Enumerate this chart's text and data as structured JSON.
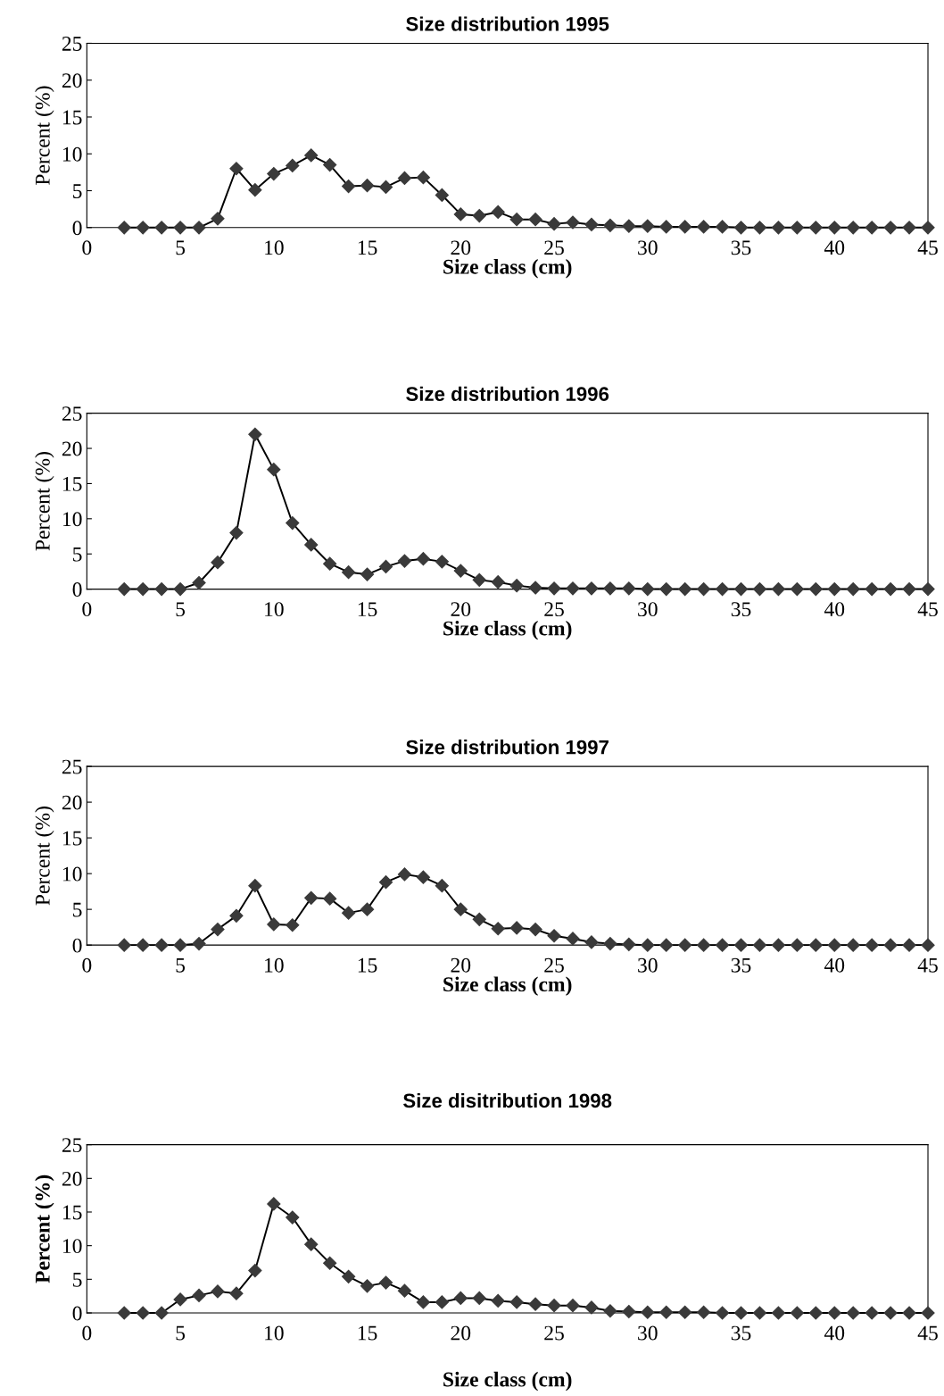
{
  "chart_data": [
    {
      "type": "line",
      "title": "Size distribution 1995",
      "xlabel": "Size class (cm)",
      "ylabel": "Percent (%)",
      "xlim": [
        0,
        45
      ],
      "xticks": [
        0,
        5,
        10,
        15,
        20,
        25,
        30,
        35,
        40,
        45
      ],
      "ylim": [
        0,
        25
      ],
      "yticks": [
        0,
        5,
        10,
        15,
        20,
        25
      ],
      "grid": false,
      "marker": "diamond",
      "line_style": "solid",
      "x": [
        2,
        3,
        4,
        5,
        6,
        7,
        8,
        9,
        10,
        11,
        12,
        13,
        14,
        15,
        16,
        17,
        18,
        19,
        20,
        21,
        22,
        23,
        24,
        25,
        26,
        27,
        28,
        29,
        30,
        31,
        32,
        33,
        34,
        35,
        36,
        37,
        38,
        39,
        40,
        41,
        42,
        43,
        44,
        45
      ],
      "series": [
        {
          "color": "#3a3a3a",
          "values": [
            0,
            0,
            0,
            0,
            0,
            1.2,
            8,
            5.1,
            7.3,
            8.4,
            9.8,
            8.5,
            5.6,
            5.7,
            5.5,
            6.7,
            6.8,
            4.4,
            1.8,
            1.6,
            2.1,
            1.1,
            1.1,
            0.5,
            0.7,
            0.4,
            0.3,
            0.2,
            0.2,
            0.1,
            0.1,
            0.1,
            0.1,
            0,
            0,
            0,
            0,
            0,
            0,
            0,
            0,
            0,
            0,
            0
          ]
        }
      ]
    },
    {
      "type": "line",
      "title": "Size distribution 1996",
      "xlabel": "Size class (cm)",
      "ylabel": "Percent (%)",
      "xlim": [
        0,
        45
      ],
      "xticks": [
        0,
        5,
        10,
        15,
        20,
        25,
        30,
        35,
        40,
        45
      ],
      "ylim": [
        0,
        25
      ],
      "yticks": [
        0,
        5,
        10,
        15,
        20,
        25
      ],
      "grid": false,
      "marker": "diamond",
      "line_style": "solid",
      "x": [
        2,
        3,
        4,
        5,
        6,
        7,
        8,
        9,
        10,
        11,
        12,
        13,
        14,
        15,
        16,
        17,
        18,
        19,
        20,
        21,
        22,
        23,
        24,
        25,
        26,
        27,
        28,
        29,
        30,
        31,
        32,
        33,
        34,
        35,
        36,
        37,
        38,
        39,
        40,
        41,
        42,
        43,
        44,
        45
      ],
      "series": [
        {
          "color": "#3a3a3a",
          "values": [
            0,
            0,
            0,
            0,
            0.9,
            3.8,
            8,
            22,
            17,
            9.4,
            6.3,
            3.6,
            2.4,
            2.1,
            3.2,
            4,
            4.3,
            3.9,
            2.6,
            1.3,
            1,
            0.5,
            0.2,
            0.1,
            0.1,
            0.1,
            0.1,
            0.1,
            0,
            0,
            0,
            0,
            0,
            0,
            0,
            0,
            0,
            0,
            0,
            0,
            0,
            0,
            0,
            0
          ]
        }
      ]
    },
    {
      "type": "line",
      "title": "Size distribution 1997",
      "xlabel": "Size class (cm)",
      "ylabel": "Percent (%)",
      "xlim": [
        0,
        45
      ],
      "xticks": [
        0,
        5,
        10,
        15,
        20,
        25,
        30,
        35,
        40,
        45
      ],
      "ylim": [
        0,
        25
      ],
      "yticks": [
        0,
        5,
        10,
        15,
        20,
        25
      ],
      "grid": false,
      "marker": "diamond",
      "line_style": "solid",
      "x": [
        2,
        3,
        4,
        5,
        6,
        7,
        8,
        9,
        10,
        11,
        12,
        13,
        14,
        15,
        16,
        17,
        18,
        19,
        20,
        21,
        22,
        23,
        24,
        25,
        26,
        27,
        28,
        29,
        30,
        31,
        32,
        33,
        34,
        35,
        36,
        37,
        38,
        39,
        40,
        41,
        42,
        43,
        44,
        45
      ],
      "series": [
        {
          "color": "#3a3a3a",
          "values": [
            0,
            0,
            0,
            0,
            0.2,
            2.2,
            4.1,
            8.3,
            2.9,
            2.8,
            6.6,
            6.5,
            4.5,
            5,
            8.8,
            9.9,
            9.5,
            8.3,
            5,
            3.6,
            2.3,
            2.4,
            2.2,
            1.3,
            0.9,
            0.4,
            0.2,
            0.1,
            0,
            0,
            0,
            0,
            0,
            0,
            0,
            0,
            0,
            0,
            0,
            0,
            0,
            0,
            0,
            0
          ]
        }
      ]
    },
    {
      "type": "line",
      "title": "Size disitribution 1998",
      "xlabel": "Size class (cm)",
      "ylabel": "Percent (%)",
      "xlim": [
        0,
        45
      ],
      "xticks": [
        0,
        5,
        10,
        15,
        20,
        25,
        30,
        35,
        40,
        45
      ],
      "ylim": [
        0,
        25
      ],
      "yticks": [
        0,
        5,
        10,
        15,
        20,
        25
      ],
      "grid": false,
      "marker": "diamond",
      "line_style": "solid",
      "x": [
        2,
        3,
        4,
        5,
        6,
        7,
        8,
        9,
        10,
        11,
        12,
        13,
        14,
        15,
        16,
        17,
        18,
        19,
        20,
        21,
        22,
        23,
        24,
        25,
        26,
        27,
        28,
        29,
        30,
        31,
        32,
        33,
        34,
        35,
        36,
        37,
        38,
        39,
        40,
        41,
        42,
        43,
        44,
        45
      ],
      "series": [
        {
          "color": "#3a3a3a",
          "values": [
            0,
            0,
            0,
            2,
            2.6,
            3.2,
            2.9,
            6.3,
            16.2,
            14.2,
            10.2,
            7.4,
            5.4,
            4,
            4.5,
            3.3,
            1.6,
            1.6,
            2.2,
            2.2,
            1.8,
            1.6,
            1.3,
            1.1,
            1.1,
            0.8,
            0.3,
            0.2,
            0.1,
            0.1,
            0.1,
            0.1,
            0,
            0,
            0,
            0,
            0,
            0,
            0,
            0,
            0,
            0,
            0,
            0
          ]
        }
      ]
    }
  ]
}
